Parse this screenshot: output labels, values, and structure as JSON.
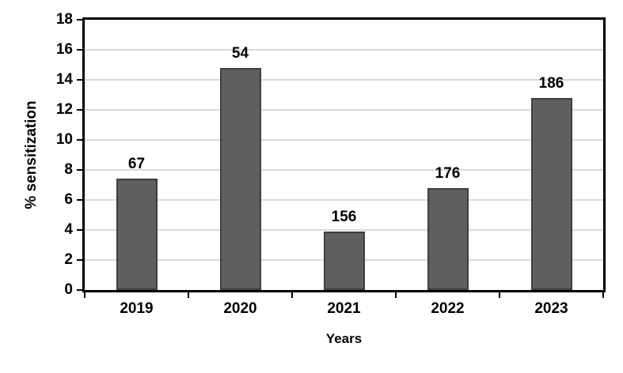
{
  "chart_data": {
    "type": "bar",
    "title": "",
    "xlabel": "Years",
    "ylabel": "% sensitization",
    "categories": [
      "2019",
      "2020",
      "2021",
      "2022",
      "2023"
    ],
    "values": [
      7.4,
      14.8,
      3.9,
      6.8,
      12.8
    ],
    "bar_labels": [
      "67",
      "54",
      "156",
      "176",
      "186"
    ],
    "ylim": [
      0,
      18
    ],
    "yticks": [
      0,
      2,
      4,
      6,
      8,
      10,
      12,
      14,
      16,
      18
    ],
    "grid": "horizontal",
    "legend": "none",
    "colors": {
      "bar_fill": "#5f5f5f",
      "bar_border": "#3f3f3f",
      "gridline": "#d9d9d9",
      "axis": "#000000",
      "text": "#000000",
      "background": "#ffffff"
    }
  }
}
